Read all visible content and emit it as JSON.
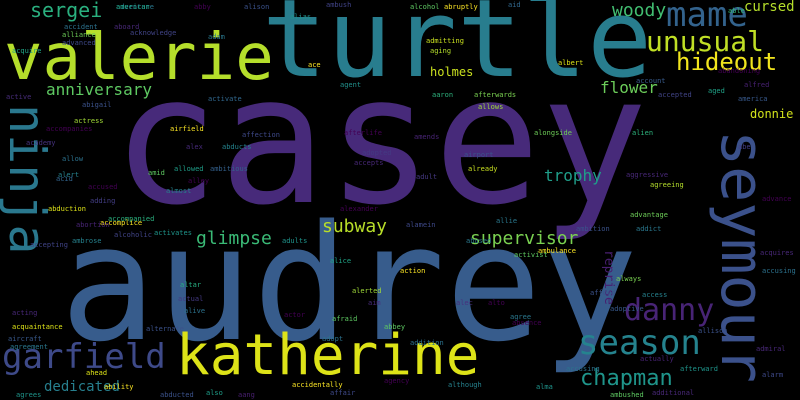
{
  "words": {
    "casey": "casey",
    "audrey": "audrey",
    "turtle": "turtle",
    "valerie": "valerie",
    "katherine": "katherine",
    "seymour": "seymour",
    "ninja": "ninja",
    "garfield": "garfield",
    "season": "season",
    "mame": "mame",
    "unusual": "unusual",
    "hideout": "hideout",
    "danny": "danny",
    "chapman": "chapman",
    "sergei": "sergei",
    "woody": "woody",
    "cursed": "cursed",
    "anniversary": "anniversary",
    "flower": "flower",
    "subway": "subway",
    "supervisor": "supervisor",
    "glimpse": "glimpse",
    "trophy": "trophy",
    "holmes": "holmes",
    "donnie": "donnie",
    "reprise": "reprise",
    "dedicated": "dedicated"
  },
  "small_words": [
    [
      "adventure",
      "#2a788e",
      0
    ],
    [
      "abby",
      "#440154",
      0
    ],
    [
      "alison",
      "#3b528b",
      0
    ],
    [
      "alias",
      "#21918c",
      0
    ],
    [
      "ambush",
      "#404387",
      0
    ],
    [
      "alcohol",
      "#5ec962",
      0
    ],
    [
      "abruptly",
      "#fde725",
      0
    ],
    [
      "aid",
      "#31688e",
      0
    ],
    [
      "able",
      "#35b779",
      0
    ],
    [
      "aboard",
      "#482878",
      0
    ],
    [
      "accident",
      "#2c728e",
      0
    ],
    [
      "alliance",
      "#6ece58",
      0
    ],
    [
      "acquire",
      "#20a486",
      0
    ],
    [
      "acknowledge",
      "#414487",
      0
    ],
    [
      "adam",
      "#2a788e",
      0
    ],
    [
      "advanced",
      "#3e4989",
      0
    ],
    [
      "admitting",
      "#cae11f",
      0
    ],
    [
      "aging",
      "#b5de2b",
      0
    ],
    [
      "ace",
      "#fde725",
      0
    ],
    [
      "agent",
      "#21918c",
      0
    ],
    [
      "albert",
      "#dde318",
      0
    ],
    [
      "afterwards",
      "#7ad151",
      0
    ],
    [
      "allows",
      "#a0da39",
      0
    ],
    [
      "aaron",
      "#2db27d",
      0
    ],
    [
      "account",
      "#375a8c",
      0
    ],
    [
      "aged",
      "#1fa287",
      0
    ],
    [
      "accepted",
      "#414487",
      0
    ],
    [
      "abandoning",
      "#440154",
      0
    ],
    [
      "alfred",
      "#482173",
      0
    ],
    [
      "america",
      "#38598c",
      0
    ],
    [
      "active",
      "#472c7a",
      0
    ],
    [
      "abigail",
      "#3b528b",
      0
    ],
    [
      "actress",
      "#a2da37",
      0
    ],
    [
      "accompanies",
      "#440154",
      0
    ],
    [
      "academy",
      "#46327e",
      0
    ],
    [
      "allow",
      "#2c728e",
      0
    ],
    [
      "alert",
      "#26828e",
      0
    ],
    [
      "acid",
      "#32658e",
      0
    ],
    [
      "airfield",
      "#fde725",
      0
    ],
    [
      "afterlife",
      "#440154",
      0
    ],
    [
      "amends",
      "#482475",
      0
    ],
    [
      "alongside",
      "#6ece58",
      0
    ],
    [
      "alien",
      "#2db27d",
      0
    ],
    [
      "abe",
      "#433e85",
      0
    ],
    [
      "activate",
      "#31688e",
      0
    ],
    [
      "affection",
      "#3e4989",
      0
    ],
    [
      "alex",
      "#472a7a",
      0
    ],
    [
      "abducts",
      "#25848e",
      0
    ],
    [
      "adopted",
      "#443a83",
      0
    ],
    [
      "airport",
      "#3b528b",
      0
    ],
    [
      "already",
      "#c8e020",
      0
    ],
    [
      "accepts",
      "#482878",
      0
    ],
    [
      "adult",
      "#453882",
      0
    ],
    [
      "allowed",
      "#1f9e89",
      0
    ],
    [
      "ambitious",
      "#34618d",
      0
    ],
    [
      "amid",
      "#5ec962",
      0
    ],
    [
      "alley",
      "#440154",
      0
    ],
    [
      "almost",
      "#26828e",
      0
    ],
    [
      "accused",
      "#440154",
      0
    ],
    [
      "adding",
      "#433e85",
      0
    ],
    [
      "abduction",
      "#dde318",
      0
    ],
    [
      "accompanied",
      "#2ab07f",
      0
    ],
    [
      "accomplice",
      "#fde725",
      0
    ],
    [
      "abortion",
      "#482475",
      0
    ],
    [
      "alcoholic",
      "#414487",
      0
    ],
    [
      "activates",
      "#1f958b",
      0
    ],
    [
      "alexander",
      "#440154",
      0
    ],
    [
      "alamein",
      "#3e4989",
      0
    ],
    [
      "allie",
      "#2a788e",
      0
    ],
    [
      "abused",
      "#2a788e",
      0
    ],
    [
      "ambulance",
      "#fde725",
      0
    ],
    [
      "ambition",
      "#3b528b",
      0
    ],
    [
      "addict",
      "#2a788e",
      0
    ],
    [
      "advantage",
      "#6ece58",
      0
    ],
    [
      "agreeing",
      "#b5de2b",
      0
    ],
    [
      "aggressive",
      "#482878",
      0
    ],
    [
      "advance",
      "#440154",
      0
    ],
    [
      "accepting",
      "#404387",
      0
    ],
    [
      "ambrose",
      "#26828e",
      0
    ],
    [
      "adults",
      "#1f948c",
      0
    ],
    [
      "alice",
      "#20a486",
      0
    ],
    [
      "action",
      "#fde725",
      0
    ],
    [
      "alerted",
      "#a0da39",
      0
    ],
    [
      "activist",
      "#5ec962",
      0
    ],
    [
      "afford",
      "#3b528b",
      0
    ],
    [
      "always",
      "#7ad151",
      0
    ],
    [
      "access",
      "#26828e",
      0
    ],
    [
      "acquires",
      "#482878",
      0
    ],
    [
      "accusing",
      "#2c728e",
      0
    ],
    [
      "altar",
      "#27ad81",
      0
    ],
    [
      "actual",
      "#443a83",
      0
    ],
    [
      "alive",
      "#2c728e",
      0
    ],
    [
      "actor",
      "#440154",
      0
    ],
    [
      "afraid",
      "#5ec962",
      0
    ],
    [
      "aim",
      "#472c7a",
      0
    ],
    [
      "alec",
      "#46327e",
      0
    ],
    [
      "alto",
      "#440154",
      0
    ],
    [
      "agree",
      "#2a788e",
      0
    ],
    [
      "absence",
      "#440154",
      0
    ],
    [
      "adoptive",
      "#38598c",
      0
    ],
    [
      "allison",
      "#3b528b",
      0
    ],
    [
      "acting",
      "#482878",
      0
    ],
    [
      "acquaintance",
      "#dde318",
      0
    ],
    [
      "aircraft",
      "#38598c",
      0
    ],
    [
      "agreement",
      "#2a788e",
      0
    ],
    [
      "alternate",
      "#3b528b",
      0
    ],
    [
      "adopt",
      "#2c728e",
      0
    ],
    [
      "abbey",
      "#5ec962",
      0
    ],
    [
      "addition",
      "#2c728e",
      0
    ],
    [
      "actually",
      "#482475",
      0
    ],
    [
      "afterward",
      "#1f958b",
      0
    ],
    [
      "accusing",
      "#2c728e",
      0
    ],
    [
      "admiral",
      "#482878",
      0
    ],
    [
      "alarm",
      "#3e4989",
      0
    ],
    [
      "ahead",
      "#dde318",
      0
    ],
    [
      "ability",
      "#fde725",
      0
    ],
    [
      "accidentally",
      "#fde725",
      0
    ],
    [
      "although",
      "#26828e",
      0
    ],
    [
      "agency",
      "#440154",
      0
    ],
    [
      "alma",
      "#1f948c",
      0
    ],
    [
      "ambushed",
      "#5ec962",
      0
    ],
    [
      "agrees",
      "#1f958b",
      0
    ],
    [
      "abducted",
      "#3b528b",
      0
    ],
    [
      "also",
      "#1f9e89",
      0
    ],
    [
      "aang",
      "#481f70",
      0
    ],
    [
      "affair",
      "#3e4989",
      0
    ],
    [
      "additional",
      "#482878",
      0
    ],
    [
      "american",
      "#20a486",
      0
    ]
  ]
}
